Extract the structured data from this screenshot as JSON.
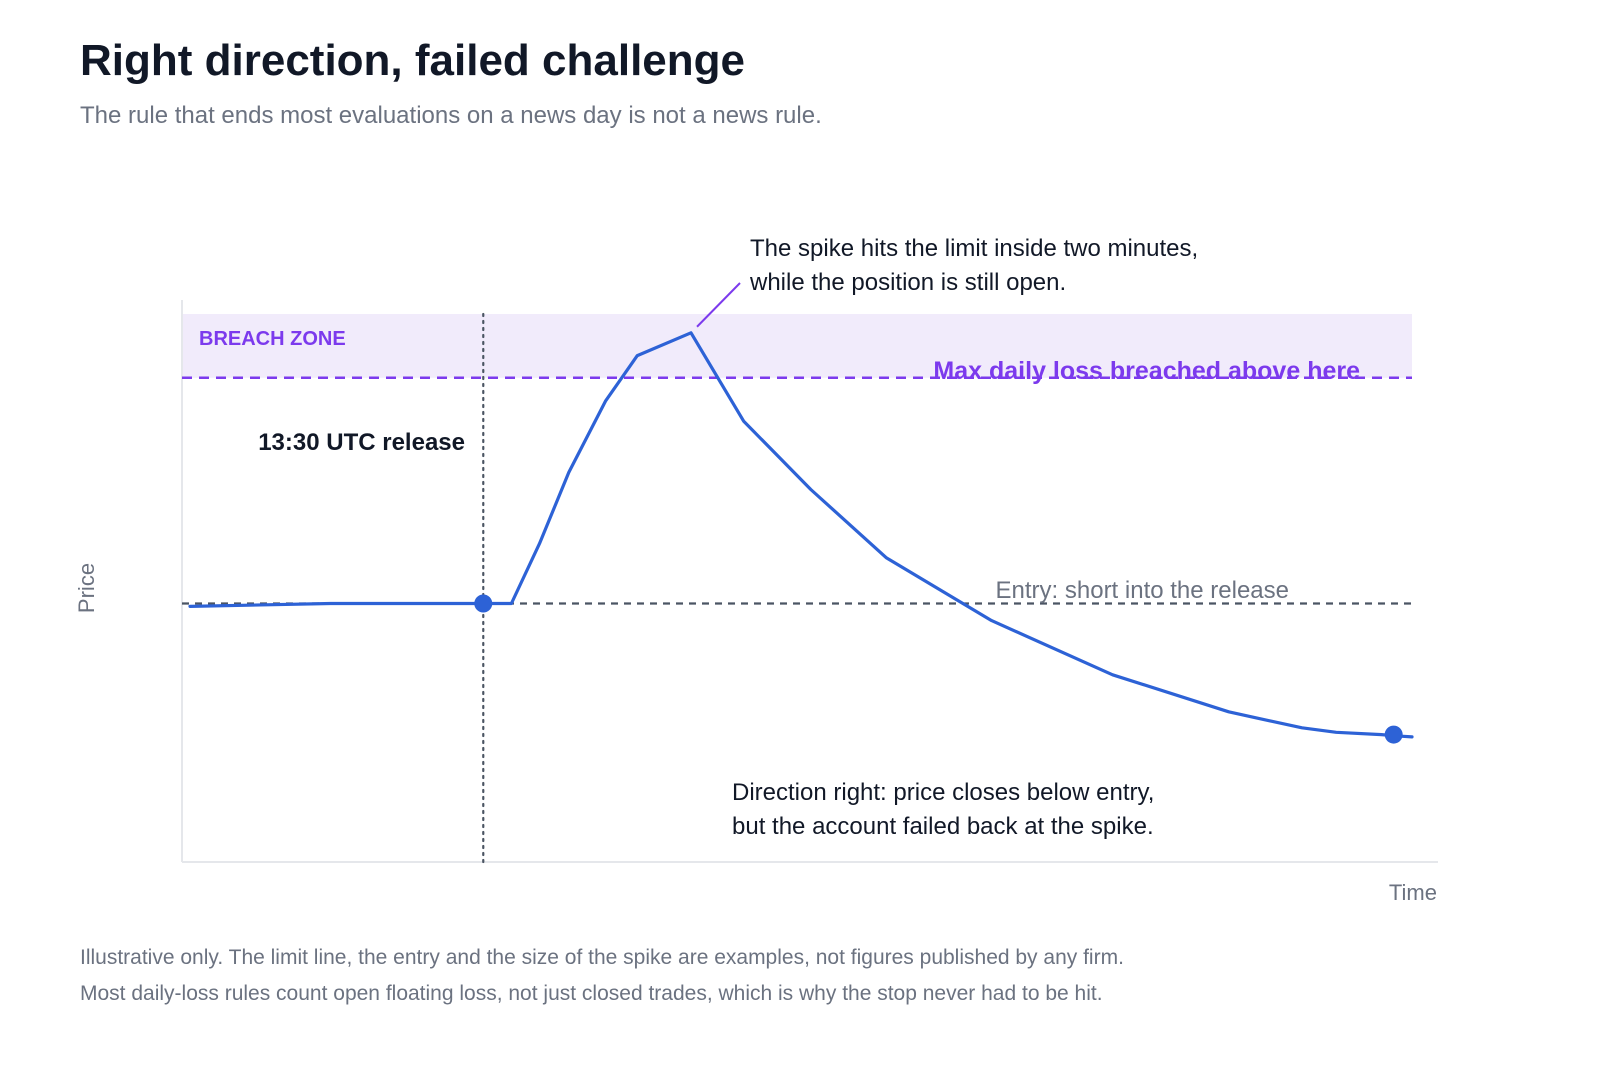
{
  "title": "Right direction, failed challenge",
  "subtitle": "The rule that ends most evaluations on a news day is not a news rule.",
  "footnotes": [
    "Illustrative only. The limit line, the entry and the size of the spike are examples, not figures published by any firm.",
    "Most daily-loss rules count open floating loss, not just closed trades, which is why the stop never had to be hit."
  ],
  "colors": {
    "price_line": "#2d62d6",
    "breach_purple": "#7c3aed",
    "breach_fill": "#f1ebfb",
    "grey_text": "#6b7280",
    "dark_text": "#111827"
  },
  "chart_data": {
    "type": "line",
    "title": "Right direction, failed challenge",
    "xlabel": "Time",
    "ylabel": "Price",
    "grid": false,
    "axis_ticks": false,
    "xlim": [
      0,
      100
    ],
    "ylim": [
      0,
      100
    ],
    "series": [
      {
        "x": [
          0,
          11.5,
          24,
          26.3,
          28.6,
          31,
          34,
          36.6,
          41,
          45.3,
          50.8,
          57,
          65.6,
          75.5,
          85,
          87.5,
          91,
          93.8,
          97.5,
          98.5,
          100
        ],
        "y": [
          44.5,
          45,
          45,
          45,
          55.5,
          68,
          80.5,
          88.5,
          92.5,
          77,
          65,
          53,
          42,
          32.5,
          26,
          24.8,
          23.2,
          22.4,
          22,
          21.8,
          21.6
        ]
      }
    ],
    "markers": [
      {
        "x": 24,
        "y": 45
      },
      {
        "x": 98.5,
        "y": 22
      }
    ],
    "reference_lines": [
      {
        "orientation": "horizontal",
        "y": 84.6,
        "style": "dashed",
        "label": "Max daily loss breached above here"
      },
      {
        "orientation": "horizontal",
        "y": 45,
        "style": "dashed",
        "label": "Entry: short into the release"
      },
      {
        "orientation": "vertical",
        "x": 24,
        "style": "dotted",
        "label": "13:30 UTC release"
      }
    ],
    "shaded_region": {
      "y_from": 84.6,
      "y_to": 100,
      "label": "BREACH ZONE"
    },
    "annotations": [
      "The spike hits the limit inside two minutes,",
      "while the position is still open.",
      "Direction right: price closes below entry,",
      "but the account failed back at the spike."
    ]
  }
}
